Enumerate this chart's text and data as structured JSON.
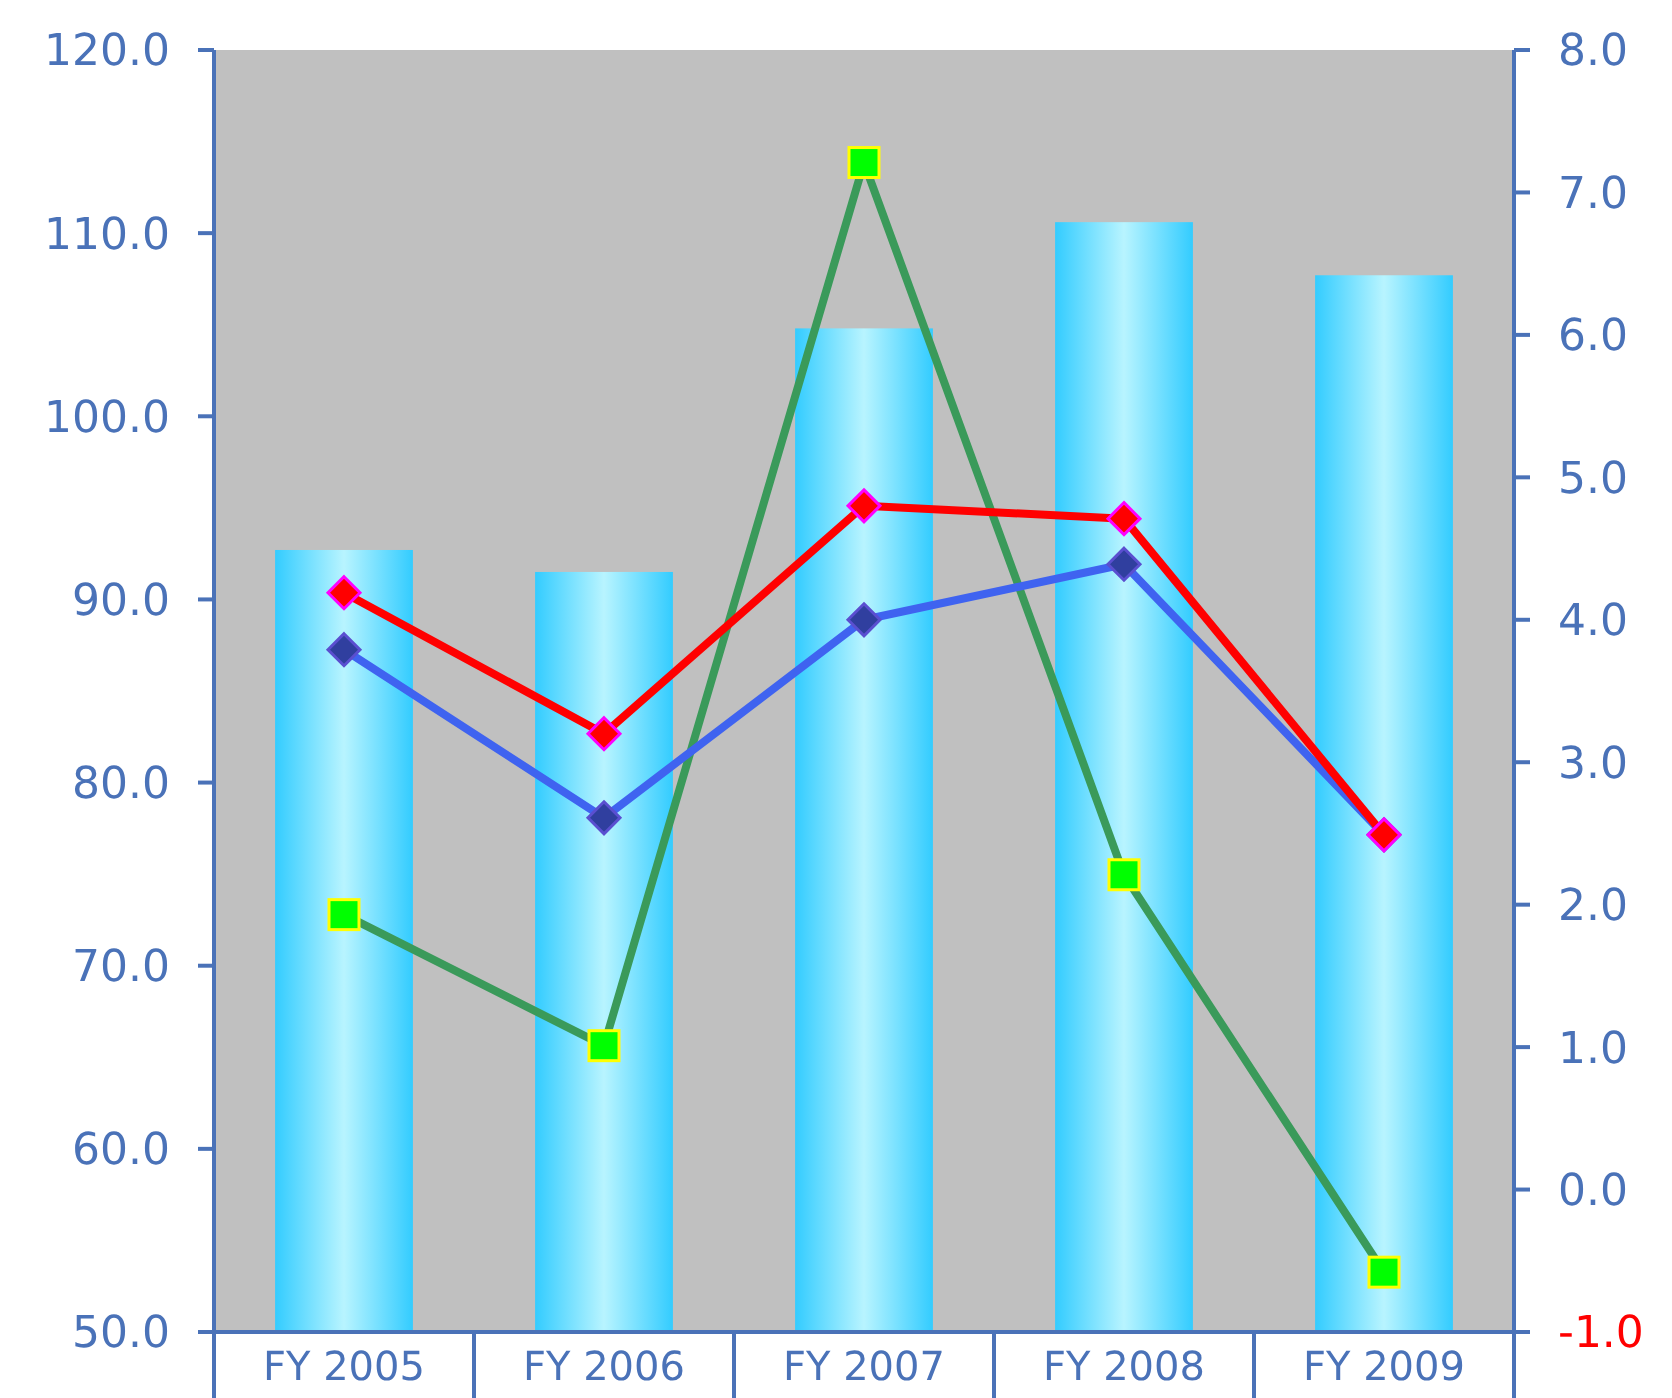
{
  "chart_data": {
    "type": "bar",
    "categories": [
      "FY 2005",
      "FY 2006",
      "FY 2007",
      "FY 2008",
      "FY 2009"
    ],
    "ylim": [
      50,
      120
    ],
    "yticks": [
      {
        "value": 50,
        "label": "50.0"
      },
      {
        "value": 60,
        "label": "60.0"
      },
      {
        "value": 70,
        "label": "70.0"
      },
      {
        "value": 80,
        "label": "80.0"
      },
      {
        "value": 90,
        "label": "90.0"
      },
      {
        "value": 100,
        "label": "100.0"
      },
      {
        "value": 110,
        "label": "110.0"
      },
      {
        "value": 120,
        "label": "120.0"
      }
    ],
    "y2lim": [
      -1,
      8
    ],
    "y2ticks": [
      {
        "value": -1,
        "label": "-1.0"
      },
      {
        "value": 0,
        "label": "0.0"
      },
      {
        "value": 1,
        "label": "1.0"
      },
      {
        "value": 2,
        "label": "2.0"
      },
      {
        "value": 3,
        "label": "3.0"
      },
      {
        "value": 4,
        "label": "4.0"
      },
      {
        "value": 5,
        "label": "5.0"
      },
      {
        "value": 6,
        "label": "6.0"
      },
      {
        "value": 7,
        "label": "7.0"
      },
      {
        "value": 8,
        "label": "8.0"
      }
    ],
    "grid": false,
    "line_style": "solid",
    "series": [
      {
        "color": "#33ccff",
        "values": [
          92.7,
          91.5,
          104.8,
          110.6,
          107.7
        ]
      },
      {
        "type": "line",
        "axis": "y2",
        "color": "#ff0000",
        "marker": "diamond",
        "values": [
          4.19,
          3.2,
          4.8,
          4.71,
          2.49
        ]
      },
      {
        "type": "line",
        "axis": "y2",
        "color": "#3f63f0",
        "marker": "diamond",
        "values": [
          3.79,
          2.61,
          4.0,
          4.39,
          2.49
        ]
      },
      {
        "type": "line",
        "axis": "y2",
        "color": "#3a9a5a",
        "marker": "square",
        "values": [
          1.93,
          1.01,
          7.21,
          2.21,
          -0.58
        ]
      }
    ]
  }
}
